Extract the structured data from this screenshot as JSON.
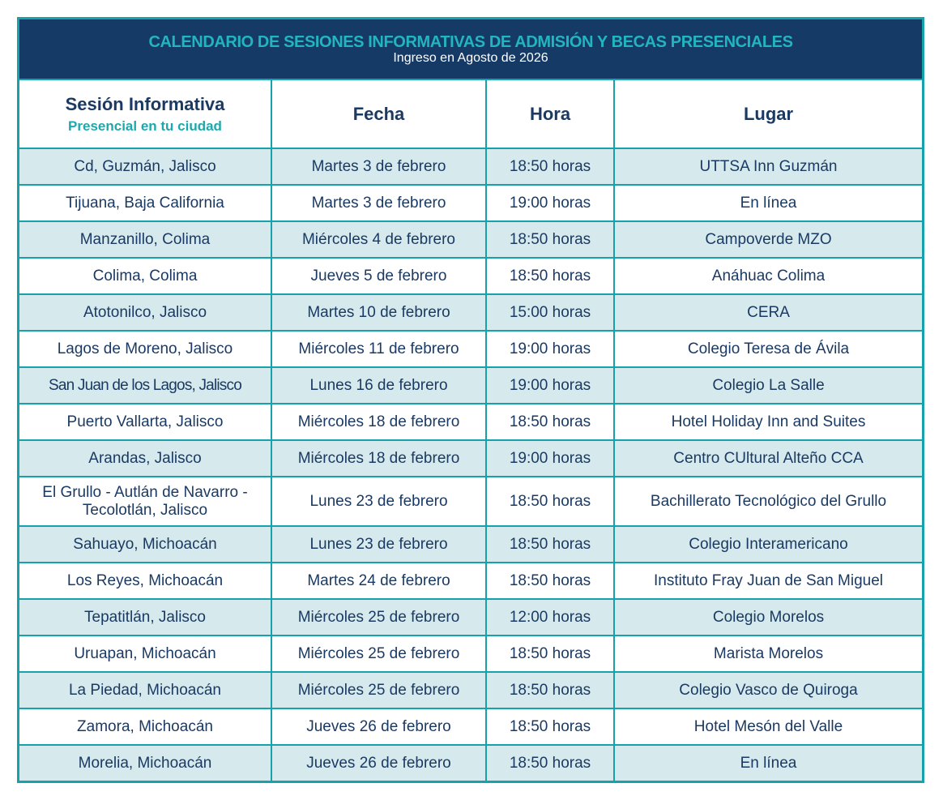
{
  "banner": {
    "title": "CALENDARIO DE SESIONES INFORMATIVAS DE ADMISIÓN Y BECAS PRESENCIALES",
    "subtitle": "Ingreso en Agosto de 2026"
  },
  "columns": {
    "session": "Sesión Informativa",
    "session_sub": "Presencial en tu ciudad",
    "date": "Fecha",
    "time": "Hora",
    "place": "Lugar"
  },
  "colors": {
    "navy": "#163a66",
    "teal": "#16a2ab",
    "title_teal": "#22b5c0",
    "row_alt": "#d6eaee",
    "text": "#1b3a63"
  },
  "rows": [
    {
      "city": "Cd, Guzmán, Jalisco",
      "date": "Martes 3 de febrero",
      "time": "18:50 horas",
      "place": "UTTSA Inn Guzmán"
    },
    {
      "city": "Tijuana, Baja California",
      "date": "Martes 3 de febrero",
      "time": "19:00 horas",
      "place": "En línea"
    },
    {
      "city": "Manzanillo, Colima",
      "date": "Miércoles 4 de febrero",
      "time": "18:50 horas",
      "place": "Campoverde MZO"
    },
    {
      "city": "Colima, Colima",
      "date": "Jueves 5 de febrero",
      "time": "18:50 horas",
      "place": "Anáhuac Colima"
    },
    {
      "city": "Atotonilco, Jalisco",
      "date": "Martes 10 de febrero",
      "time": "15:00 horas",
      "place": "CERA"
    },
    {
      "city": "Lagos de Moreno, Jalisco",
      "date": "Miércoles 11 de febrero",
      "time": "19:00 horas",
      "place": "Colegio Teresa de Ávila"
    },
    {
      "city": "San Juan de los Lagos, Jalisco",
      "date": "Lunes 16 de febrero",
      "time": "19:00 horas",
      "place": "Colegio La Salle"
    },
    {
      "city": "Puerto Vallarta, Jalisco",
      "date": "Miércoles 18 de febrero",
      "time": "18:50 horas",
      "place": "Hotel Holiday Inn and Suites"
    },
    {
      "city": "Arandas, Jalisco",
      "date": "Miércoles 18 de febrero",
      "time": "19:00 horas",
      "place": "Centro CUltural Alteño CCA"
    },
    {
      "city": "El Grullo - Autlán de Navarro - Tecolotlán, Jalisco",
      "date": "Lunes 23 de febrero",
      "time": "18:50 horas",
      "place": "Bachillerato Tecnológico del Grullo"
    },
    {
      "city": "Sahuayo, Michoacán",
      "date": "Lunes 23 de febrero",
      "time": "18:50 horas",
      "place": "Colegio Interamericano"
    },
    {
      "city": "Los Reyes, Michoacán",
      "date": "Martes 24 de febrero",
      "time": "18:50 horas",
      "place": "Instituto Fray Juan de San Miguel"
    },
    {
      "city": "Tepatitlán, Jalisco",
      "date": "Miércoles 25 de febrero",
      "time": "12:00 horas",
      "place": "Colegio Morelos"
    },
    {
      "city": "Uruapan, Michoacán",
      "date": "Miércoles 25 de febrero",
      "time": "18:50 horas",
      "place": "Marista Morelos"
    },
    {
      "city": "La Piedad, Michoacán",
      "date": "Miércoles 25 de febrero",
      "time": "18:50 horas",
      "place": "Colegio Vasco de Quiroga"
    },
    {
      "city": "Zamora, Michoacán",
      "date": "Jueves 26 de febrero",
      "time": "18:50 horas",
      "place": "Hotel Mesón del Valle"
    },
    {
      "city": "Morelia, Michoacán",
      "date": "Jueves 26 de febrero",
      "time": "18:50 horas",
      "place": "En línea"
    }
  ]
}
